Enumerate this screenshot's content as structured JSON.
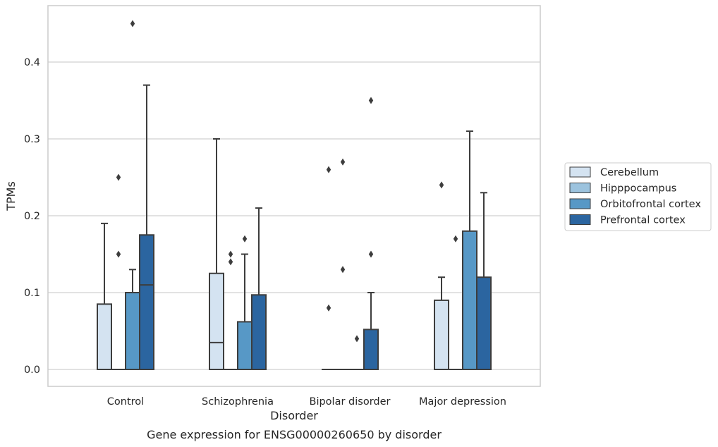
{
  "chart_data": {
    "type": "box",
    "title": "",
    "caption": "Gene expression for ENSG00000260650 by disorder",
    "xlabel": "Disorder",
    "ylabel": "TPMs",
    "ylim": [
      -0.022,
      0.473
    ],
    "yticks": [
      0.0,
      0.1,
      0.2,
      0.3,
      0.4
    ],
    "ytick_labels": [
      "0.0",
      "0.1",
      "0.2",
      "0.3",
      "0.4"
    ],
    "grid": "horizontal",
    "legend_position": "right",
    "categories": [
      "Control",
      "Schizophrenia",
      "Bipolar disorder",
      "Major depression"
    ],
    "series": [
      {
        "name": "Cerebellum",
        "color": "#d4e3f1",
        "boxes": [
          {
            "q1": 0.0,
            "median": 0.0,
            "q3": 0.085,
            "whisker_low": 0.0,
            "whisker_high": 0.19,
            "outliers": []
          },
          {
            "q1": 0.0,
            "median": 0.035,
            "q3": 0.125,
            "whisker_low": 0.0,
            "whisker_high": 0.3,
            "outliers": []
          },
          {
            "q1": 0.0,
            "median": 0.0,
            "q3": 0.0,
            "whisker_low": 0.0,
            "whisker_high": 0.0,
            "outliers": [
              0.08,
              0.26
            ]
          },
          {
            "q1": 0.0,
            "median": 0.0,
            "q3": 0.09,
            "whisker_low": 0.0,
            "whisker_high": 0.12,
            "outliers": [
              0.24
            ]
          }
        ]
      },
      {
        "name": "Hipppocampus",
        "color": "#9cc3de",
        "boxes": [
          {
            "q1": 0.0,
            "median": 0.0,
            "q3": 0.0,
            "whisker_low": 0.0,
            "whisker_high": 0.0,
            "outliers": [
              0.15,
              0.25
            ]
          },
          {
            "q1": 0.0,
            "median": 0.0,
            "q3": 0.0,
            "whisker_low": 0.0,
            "whisker_high": 0.0,
            "outliers": [
              0.14,
              0.15
            ]
          },
          {
            "q1": 0.0,
            "median": 0.0,
            "q3": 0.0,
            "whisker_low": 0.0,
            "whisker_high": 0.0,
            "outliers": [
              0.13,
              0.27
            ]
          },
          {
            "q1": 0.0,
            "median": 0.0,
            "q3": 0.0,
            "whisker_low": 0.0,
            "whisker_high": 0.0,
            "outliers": [
              0.17
            ]
          }
        ]
      },
      {
        "name": "Orbitofrontal cortex",
        "color": "#5798c6",
        "boxes": [
          {
            "q1": 0.0,
            "median": 0.0,
            "q3": 0.1,
            "whisker_low": 0.0,
            "whisker_high": 0.13,
            "outliers": [
              0.45
            ]
          },
          {
            "q1": 0.0,
            "median": 0.0,
            "q3": 0.062,
            "whisker_low": 0.0,
            "whisker_high": 0.15,
            "outliers": [
              0.17
            ]
          },
          {
            "q1": 0.0,
            "median": 0.0,
            "q3": 0.0,
            "whisker_low": 0.0,
            "whisker_high": 0.0,
            "outliers": [
              0.04
            ]
          },
          {
            "q1": 0.0,
            "median": 0.0,
            "q3": 0.18,
            "whisker_low": 0.0,
            "whisker_high": 0.31,
            "outliers": []
          }
        ]
      },
      {
        "name": "Prefrontal cortex",
        "color": "#2b65a0",
        "boxes": [
          {
            "q1": 0.0,
            "median": 0.11,
            "q3": 0.175,
            "whisker_low": 0.0,
            "whisker_high": 0.37,
            "outliers": []
          },
          {
            "q1": 0.0,
            "median": 0.0,
            "q3": 0.097,
            "whisker_low": 0.0,
            "whisker_high": 0.21,
            "outliers": []
          },
          {
            "q1": 0.0,
            "median": 0.0,
            "q3": 0.052,
            "whisker_low": 0.0,
            "whisker_high": 0.1,
            "outliers": [
              0.15,
              0.35
            ]
          },
          {
            "q1": 0.0,
            "median": 0.0,
            "q3": 0.12,
            "whisker_low": 0.0,
            "whisker_high": 0.23,
            "outliers": []
          }
        ]
      }
    ],
    "colors": {
      "edge": "#3d3d3d",
      "grid": "#d0d0d0",
      "frame": "#cccccc"
    }
  }
}
